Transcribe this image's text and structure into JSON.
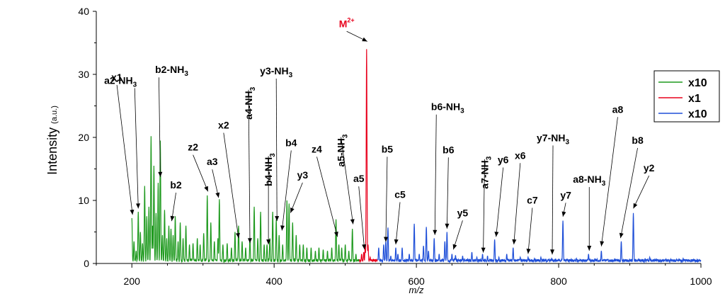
{
  "chart_data": {
    "type": "line",
    "xlabel": "m/z",
    "ylabel": "Intensity",
    "ylabel_unit": "(a.u.)",
    "xlim": [
      150,
      1000
    ],
    "ylim": [
      0,
      40
    ],
    "xticks": [
      200,
      400,
      600,
      800,
      1000
    ],
    "yticks": [
      0,
      10,
      20,
      30,
      40
    ],
    "grid": false,
    "legend_position": "right",
    "series": [
      {
        "name": "x10",
        "color": "#1f9a1f",
        "x_range": [
          200,
          520
        ],
        "peaks": [
          [
            200,
            7.2
          ],
          [
            203,
            3.5
          ],
          [
            206,
            2.0
          ],
          [
            209,
            8.2
          ],
          [
            212,
            5.0
          ],
          [
            215,
            3.2
          ],
          [
            218,
            12.3
          ],
          [
            221,
            7.5
          ],
          [
            224,
            9.0
          ],
          [
            227,
            20.2
          ],
          [
            229,
            6.0
          ],
          [
            231,
            15.5
          ],
          [
            234,
            8.0
          ],
          [
            237,
            12.8
          ],
          [
            240,
            19.5
          ],
          [
            243,
            4.5
          ],
          [
            246,
            8.5
          ],
          [
            249,
            4.0
          ],
          [
            252,
            6.0
          ],
          [
            255,
            5.5
          ],
          [
            258,
            4.5
          ],
          [
            261,
            7.5
          ],
          [
            265,
            3.5
          ],
          [
            268,
            6.5
          ],
          [
            272,
            4.0
          ],
          [
            276,
            6.0
          ],
          [
            281,
            3.0
          ],
          [
            286,
            3.2
          ],
          [
            292,
            4.0
          ],
          [
            296,
            3.0
          ],
          [
            301,
            4.8
          ],
          [
            306,
            10.8
          ],
          [
            311,
            6.5
          ],
          [
            316,
            3.5
          ],
          [
            321,
            4.0
          ],
          [
            323,
            10.2
          ],
          [
            328,
            3.0
          ],
          [
            334,
            3.2
          ],
          [
            340,
            2.5
          ],
          [
            345,
            5.0
          ],
          [
            350,
            6.0
          ],
          [
            355,
            3.5
          ],
          [
            360,
            2.5
          ],
          [
            366,
            4.0
          ],
          [
            372,
            9.0
          ],
          [
            377,
            4.0
          ],
          [
            381,
            8.2
          ],
          [
            386,
            3.0
          ],
          [
            390,
            3.0
          ],
          [
            394,
            4.0
          ],
          [
            398,
            8.2
          ],
          [
            403,
            7.0
          ],
          [
            407,
            4.5
          ],
          [
            412,
            3.0
          ],
          [
            418,
            10.0
          ],
          [
            421,
            9.5
          ],
          [
            426,
            6.5
          ],
          [
            431,
            4.5
          ],
          [
            436,
            3.0
          ],
          [
            441,
            3.0
          ],
          [
            446,
            2.5
          ],
          [
            452,
            2.5
          ],
          [
            458,
            2.0
          ],
          [
            463,
            2.5
          ],
          [
            469,
            2.2
          ],
          [
            475,
            2.0
          ],
          [
            481,
            2.5
          ],
          [
            487,
            7.0
          ],
          [
            491,
            3.0
          ],
          [
            495,
            2.5
          ],
          [
            500,
            3.0
          ],
          [
            505,
            2.0
          ],
          [
            510,
            5.5
          ],
          [
            515,
            1.5
          ]
        ]
      },
      {
        "name": "x1",
        "color": "#e8001c",
        "x_range": [
          520,
          545
        ],
        "peaks": [
          [
            523,
            1.5
          ],
          [
            526,
            1.8
          ],
          [
            528,
            2.5
          ],
          [
            530,
            34.0
          ],
          [
            532,
            3.0
          ],
          [
            535,
            1.0
          ]
        ]
      },
      {
        "name": "x10",
        "color": "#1f4fd8",
        "x_range": [
          545,
          1000
        ],
        "peaks": [
          [
            547,
            2.5
          ],
          [
            554,
            3.0
          ],
          [
            557,
            3.5
          ],
          [
            560,
            5.7
          ],
          [
            564,
            1.2
          ],
          [
            571,
            2.5
          ],
          [
            574,
            1.5
          ],
          [
            580,
            2.5
          ],
          [
            590,
            1.5
          ],
          [
            597,
            6.3
          ],
          [
            604,
            1.5
          ],
          [
            610,
            2.8
          ],
          [
            614,
            5.8
          ],
          [
            617,
            2.0
          ],
          [
            625,
            4.0
          ],
          [
            632,
            1.5
          ],
          [
            640,
            3.5
          ],
          [
            643,
            5.0
          ],
          [
            650,
            1.5
          ],
          [
            655,
            1.3
          ],
          [
            665,
            1.2
          ],
          [
            678,
            1.8
          ],
          [
            685,
            1.0
          ],
          [
            693,
            1.5
          ],
          [
            700,
            1.2
          ],
          [
            710,
            3.8
          ],
          [
            716,
            1.0
          ],
          [
            727,
            1.5
          ],
          [
            736,
            2.5
          ],
          [
            746,
            1.0
          ],
          [
            757,
            1.0
          ],
          [
            766,
            0.8
          ],
          [
            775,
            1.0
          ],
          [
            790,
            0.8
          ],
          [
            806,
            6.8
          ],
          [
            825,
            0.8
          ],
          [
            842,
            1.5
          ],
          [
            860,
            2.0
          ],
          [
            888,
            3.5
          ],
          [
            905,
            8.0
          ],
          [
            928,
            1.0
          ],
          [
            955,
            0.6
          ],
          [
            975,
            0.8
          ]
        ]
      }
    ],
    "annotations": [
      {
        "label": "x1",
        "x": 201,
        "y": 7.5,
        "tx": 171,
        "ty": 29,
        "anchor": "start"
      },
      {
        "label": "a2-NH",
        "sub": "3",
        "x": 209,
        "y": 8.5,
        "tx": 184,
        "ty": 28.5,
        "anchor": "middle",
        "ax": 204
      },
      {
        "label": "b2-NH",
        "sub": "3",
        "x": 240,
        "y": 13.5,
        "tx": 256,
        "ty": 30.2,
        "anchor": "middle",
        "ax": 238
      },
      {
        "label": "b2",
        "x": 256,
        "y": 6.5,
        "tx": 262,
        "ty": 11.9,
        "anchor": "middle"
      },
      {
        "label": "z2",
        "x": 307,
        "y": 11.2,
        "tx": 286,
        "ty": 17.9,
        "anchor": "middle"
      },
      {
        "label": "a3",
        "x": 322,
        "y": 10.2,
        "tx": 313,
        "ty": 15.6,
        "anchor": "middle"
      },
      {
        "label": "x2",
        "x": 350,
        "y": 3.8,
        "tx": 329,
        "ty": 21.4,
        "anchor": "middle"
      },
      {
        "label": "a4-NH",
        "sub": "3",
        "x": 366,
        "y": 3.0,
        "tx": 364,
        "ty": 28.0,
        "anchor": "middle",
        "vertical": true
      },
      {
        "label": "y3-NH",
        "sub": "3",
        "x": 404,
        "y": 6.5,
        "tx": 403,
        "ty": 30.0,
        "anchor": "middle"
      },
      {
        "label": "b4-NH",
        "sub": "3",
        "x": 392,
        "y": 2.8,
        "tx": 392,
        "ty": 17.5,
        "anchor": "middle",
        "vertical": true
      },
      {
        "label": "b4",
        "x": 411,
        "y": 5.0,
        "tx": 424,
        "ty": 18.6,
        "anchor": "middle"
      },
      {
        "label": "y3",
        "x": 423,
        "y": 7.8,
        "tx": 440,
        "ty": 13.5,
        "anchor": "middle"
      },
      {
        "label": "z4",
        "x": 489,
        "y": 4.0,
        "tx": 460,
        "ty": 17.6,
        "anchor": "middle"
      },
      {
        "label": "a5-NH",
        "sub": "3",
        "x": 511,
        "y": 6.0,
        "tx": 494,
        "ty": 20.5,
        "anchor": "middle",
        "vertical": true
      },
      {
        "label": "a5",
        "x": 527,
        "y": 2.0,
        "tx": 519,
        "ty": 12.9,
        "anchor": "middle"
      },
      {
        "label": "M",
        "sup": "2+",
        "x": 531,
        "y": 35.0,
        "tx": 502,
        "ty": 37.5,
        "anchor": "middle",
        "red": true
      },
      {
        "label": "b5",
        "x": 557,
        "y": 3.2,
        "tx": 559,
        "ty": 17.6,
        "anchor": "middle"
      },
      {
        "label": "c5",
        "x": 571,
        "y": 2.8,
        "tx": 577,
        "ty": 10.4,
        "anchor": "middle"
      },
      {
        "label": "b6-NH",
        "sub": "3",
        "x": 626,
        "y": 4.3,
        "tx": 644,
        "ty": 24.3,
        "anchor": "middle",
        "ax": 628
      },
      {
        "label": "b6",
        "x": 643,
        "y": 5.3,
        "tx": 645,
        "ty": 17.5,
        "anchor": "middle"
      },
      {
        "label": "y5",
        "x": 652,
        "y": 2.0,
        "tx": 665,
        "ty": 7.5,
        "anchor": "middle"
      },
      {
        "label": "a7-NH",
        "sub": "3",
        "x": 694,
        "y": 1.5,
        "tx": 696,
        "ty": 17.0,
        "anchor": "middle",
        "vertical": true
      },
      {
        "label": "y6",
        "x": 712,
        "y": 4.0,
        "tx": 722,
        "ty": 15.9,
        "anchor": "middle"
      },
      {
        "label": "x6",
        "x": 737,
        "y": 2.8,
        "tx": 746,
        "ty": 16.6,
        "anchor": "middle"
      },
      {
        "label": "c7",
        "x": 757,
        "y": 1.3,
        "tx": 763,
        "ty": 9.5,
        "anchor": "middle"
      },
      {
        "label": "y7-NH",
        "sub": "3",
        "x": 791,
        "y": 1.2,
        "tx": 792,
        "ty": 19.4,
        "anchor": "middle"
      },
      {
        "label": "y7",
        "x": 806,
        "y": 7.2,
        "tx": 810,
        "ty": 10.3,
        "anchor": "middle"
      },
      {
        "label": "a8-NH",
        "sub": "3",
        "x": 843,
        "y": 1.8,
        "tx": 843,
        "ty": 12.8,
        "anchor": "middle"
      },
      {
        "label": "a8",
        "x": 860,
        "y": 2.5,
        "tx": 883,
        "ty": 23.9,
        "anchor": "middle"
      },
      {
        "label": "b8",
        "x": 887,
        "y": 3.8,
        "tx": 911,
        "ty": 19.0,
        "anchor": "middle"
      },
      {
        "label": "y2",
        "x": 905,
        "y": 8.5,
        "tx": 927,
        "ty": 14.6,
        "anchor": "middle"
      }
    ]
  }
}
